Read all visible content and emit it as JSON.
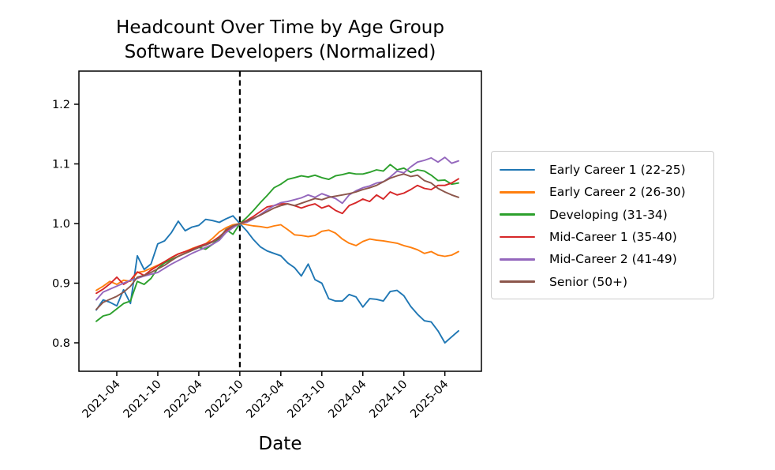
{
  "title": "Headcount Over Time by Age Group",
  "subtitle": "Software Developers (Normalized)",
  "chart_data": {
    "type": "line",
    "title": "Headcount Over Time by Age Group",
    "subtitle": "Software Developers (Normalized)",
    "xlabel": "Date",
    "ylabel": "",
    "grid": false,
    "legend_position": "right",
    "ylim": [
      0.75,
      1.25
    ],
    "y_ticks": [
      0.8,
      0.9,
      1.0,
      1.1,
      1.2
    ],
    "x_tick_labels": [
      "2021-04",
      "2021-10",
      "2022-04",
      "2022-10",
      "2023-04",
      "2023-10",
      "2024-04",
      "2024-10",
      "2025-04"
    ],
    "vline": {
      "x": "2022-10",
      "style": "dashed",
      "color": "#000000"
    },
    "x": [
      "2021-01",
      "2021-02",
      "2021-03",
      "2021-04",
      "2021-05",
      "2021-06",
      "2021-07",
      "2021-08",
      "2021-09",
      "2021-10",
      "2021-11",
      "2021-12",
      "2022-01",
      "2022-02",
      "2022-03",
      "2022-04",
      "2022-05",
      "2022-06",
      "2022-07",
      "2022-08",
      "2022-09",
      "2022-10",
      "2022-11",
      "2022-12",
      "2023-01",
      "2023-02",
      "2023-03",
      "2023-04",
      "2023-05",
      "2023-06",
      "2023-07",
      "2023-08",
      "2023-09",
      "2023-10",
      "2023-11",
      "2023-12",
      "2024-01",
      "2024-02",
      "2024-03",
      "2024-04",
      "2024-05",
      "2024-06",
      "2024-07",
      "2024-08",
      "2024-09",
      "2024-10",
      "2024-11",
      "2024-12",
      "2025-01",
      "2025-02",
      "2025-03",
      "2025-04",
      "2025-05",
      "2025-06"
    ],
    "series": [
      {
        "id": "early-career-1",
        "name": "Early Career 1 (22-25)",
        "color": "#1f77b4",
        "values": [
          0.855,
          0.872,
          0.868,
          0.862,
          0.889,
          0.866,
          0.946,
          0.923,
          0.932,
          0.966,
          0.971,
          0.985,
          1.004,
          0.988,
          0.994,
          0.997,
          1.007,
          1.005,
          1.002,
          1.008,
          1.013,
          1.0,
          0.988,
          0.973,
          0.961,
          0.954,
          0.95,
          0.946,
          0.934,
          0.926,
          0.912,
          0.932,
          0.906,
          0.9,
          0.874,
          0.87,
          0.87,
          0.881,
          0.877,
          0.86,
          0.874,
          0.873,
          0.87,
          0.886,
          0.888,
          0.879,
          0.861,
          0.848,
          0.837,
          0.835,
          0.82,
          0.8,
          0.81,
          0.82
        ]
      },
      {
        "id": "early-career-2",
        "name": "Early Career 2 (26-30)",
        "color": "#ff7f0e",
        "values": [
          0.888,
          0.895,
          0.903,
          0.898,
          0.905,
          0.903,
          0.918,
          0.92,
          0.925,
          0.93,
          0.936,
          0.943,
          0.949,
          0.953,
          0.958,
          0.962,
          0.966,
          0.975,
          0.986,
          0.993,
          0.998,
          1.0,
          0.998,
          0.996,
          0.995,
          0.993,
          0.996,
          0.998,
          0.99,
          0.981,
          0.98,
          0.978,
          0.98,
          0.987,
          0.989,
          0.984,
          0.974,
          0.967,
          0.963,
          0.97,
          0.974,
          0.972,
          0.971,
          0.969,
          0.967,
          0.963,
          0.96,
          0.956,
          0.95,
          0.953,
          0.947,
          0.945,
          0.947,
          0.953
        ]
      },
      {
        "id": "developing",
        "name": "Developing (31-34)",
        "color": "#2ca02c",
        "values": [
          0.836,
          0.845,
          0.848,
          0.857,
          0.866,
          0.87,
          0.903,
          0.898,
          0.908,
          0.925,
          0.934,
          0.94,
          0.945,
          0.95,
          0.955,
          0.96,
          0.957,
          0.965,
          0.975,
          0.99,
          0.982,
          1.0,
          1.01,
          1.022,
          1.035,
          1.047,
          1.06,
          1.066,
          1.074,
          1.077,
          1.08,
          1.078,
          1.081,
          1.077,
          1.074,
          1.08,
          1.082,
          1.085,
          1.083,
          1.083,
          1.086,
          1.09,
          1.088,
          1.099,
          1.09,
          1.093,
          1.086,
          1.09,
          1.088,
          1.081,
          1.072,
          1.073,
          1.066,
          1.068
        ]
      },
      {
        "id": "mid-career-1",
        "name": "Mid-Career 1 (35-40)",
        "color": "#d62728",
        "values": [
          0.883,
          0.89,
          0.899,
          0.91,
          0.898,
          0.905,
          0.919,
          0.913,
          0.922,
          0.929,
          0.936,
          0.943,
          0.949,
          0.953,
          0.957,
          0.962,
          0.966,
          0.97,
          0.978,
          0.988,
          0.995,
          1.0,
          1.005,
          1.012,
          1.02,
          1.028,
          1.03,
          1.033,
          1.033,
          1.03,
          1.026,
          1.03,
          1.033,
          1.026,
          1.03,
          1.022,
          1.017,
          1.03,
          1.035,
          1.041,
          1.037,
          1.048,
          1.041,
          1.053,
          1.048,
          1.051,
          1.057,
          1.064,
          1.059,
          1.057,
          1.064,
          1.064,
          1.068,
          1.075
        ]
      },
      {
        "id": "mid-career-2",
        "name": "Mid-Career 2 (41-49)",
        "color": "#9467bd",
        "values": [
          0.872,
          0.885,
          0.89,
          0.895,
          0.9,
          0.905,
          0.908,
          0.912,
          0.915,
          0.918,
          0.925,
          0.932,
          0.938,
          0.944,
          0.95,
          0.955,
          0.96,
          0.965,
          0.972,
          0.985,
          0.993,
          1.0,
          1.002,
          1.008,
          1.015,
          1.023,
          1.03,
          1.035,
          1.037,
          1.04,
          1.043,
          1.048,
          1.044,
          1.05,
          1.046,
          1.042,
          1.034,
          1.048,
          1.055,
          1.06,
          1.063,
          1.068,
          1.07,
          1.078,
          1.088,
          1.085,
          1.095,
          1.103,
          1.106,
          1.11,
          1.103,
          1.111,
          1.101,
          1.105
        ]
      },
      {
        "id": "senior",
        "name": "Senior (50+)",
        "color": "#8c564b",
        "values": [
          0.856,
          0.868,
          0.873,
          0.878,
          0.885,
          0.895,
          0.91,
          0.913,
          0.918,
          0.924,
          0.93,
          0.938,
          0.945,
          0.95,
          0.955,
          0.96,
          0.964,
          0.969,
          0.976,
          0.99,
          0.996,
          1.0,
          1.004,
          1.009,
          1.014,
          1.02,
          1.026,
          1.03,
          1.033,
          1.03,
          1.034,
          1.038,
          1.042,
          1.04,
          1.044,
          1.046,
          1.048,
          1.05,
          1.053,
          1.057,
          1.06,
          1.064,
          1.07,
          1.076,
          1.08,
          1.083,
          1.079,
          1.081,
          1.072,
          1.068,
          1.059,
          1.053,
          1.048,
          1.044
        ]
      }
    ]
  }
}
